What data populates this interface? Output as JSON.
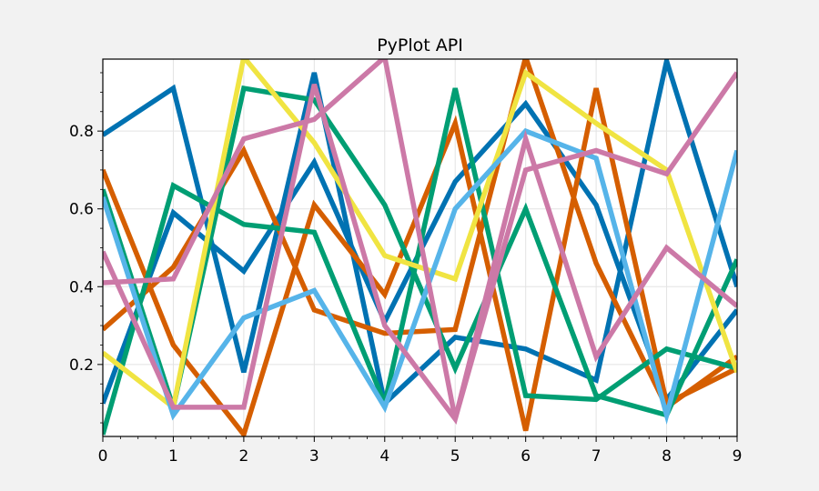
{
  "chart_data": {
    "type": "line",
    "title": "PyPlot API",
    "xlabel": "",
    "ylabel": "",
    "xlim": [
      0,
      9
    ],
    "ylim": [
      0.015,
      0.985
    ],
    "grid": true,
    "x": [
      0,
      1,
      2,
      3,
      4,
      5,
      6,
      7,
      8,
      9
    ],
    "x_ticks": [
      "0",
      "1",
      "2",
      "3",
      "4",
      "5",
      "6",
      "7",
      "8",
      "9"
    ],
    "y_ticks": [
      {
        "value": 0.2,
        "label": "0.2"
      },
      {
        "value": 0.4,
        "label": "0.4"
      },
      {
        "value": 0.6,
        "label": "0.6"
      },
      {
        "value": 0.8,
        "label": "0.8"
      }
    ],
    "series": [
      {
        "color": "#0072b2",
        "values": [
          0.79,
          0.91,
          0.18,
          0.95,
          0.1,
          0.27,
          0.24,
          0.16,
          0.98,
          0.4
        ]
      },
      {
        "color": "#0072b2",
        "values": [
          0.1,
          0.59,
          0.44,
          0.72,
          0.31,
          0.67,
          0.87,
          0.61,
          0.11,
          0.34
        ]
      },
      {
        "color": "#d55e00",
        "values": [
          0.7,
          0.25,
          0.02,
          0.61,
          0.38,
          0.82,
          0.03,
          0.91,
          0.1,
          0.19
        ]
      },
      {
        "color": "#d55e00",
        "values": [
          0.29,
          0.45,
          0.75,
          0.34,
          0.28,
          0.29,
          0.99,
          0.46,
          0.09,
          0.22
        ]
      },
      {
        "color": "#009e73",
        "values": [
          0.02,
          0.66,
          0.56,
          0.54,
          0.1,
          0.91,
          0.12,
          0.11,
          0.24,
          0.19
        ]
      },
      {
        "color": "#009e73",
        "values": [
          0.65,
          0.09,
          0.91,
          0.88,
          0.61,
          0.19,
          0.6,
          0.12,
          0.07,
          0.47
        ]
      },
      {
        "color": "#f0e442",
        "values": [
          0.23,
          0.09,
          0.99,
          0.77,
          0.48,
          0.42,
          0.95,
          0.82,
          0.7,
          0.18
        ]
      },
      {
        "color": "#56b4e9",
        "values": [
          0.63,
          0.07,
          0.32,
          0.39,
          0.09,
          0.6,
          0.8,
          0.73,
          0.07,
          0.75
        ]
      },
      {
        "color": "#cc79a7",
        "values": [
          0.41,
          0.42,
          0.78,
          0.83,
          0.99,
          0.06,
          0.7,
          0.75,
          0.69,
          0.95
        ]
      },
      {
        "color": "#cc79a7",
        "values": [
          0.49,
          0.09,
          0.09,
          0.92,
          0.3,
          0.06,
          0.78,
          0.22,
          0.5,
          0.35
        ]
      }
    ]
  }
}
